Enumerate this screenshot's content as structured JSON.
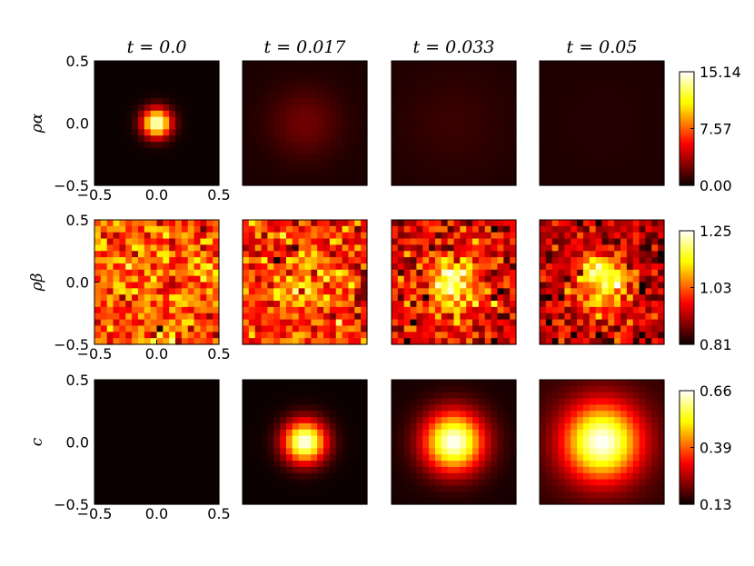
{
  "chart_data": {
    "type": "heatmap",
    "titles": [
      "t = 0.0",
      "t = 0.017",
      "t = 0.033",
      "t = 0.05"
    ],
    "rows": [
      {
        "label": "ρ_α",
        "label_display": "ρα",
        "colorbar": {
          "min": 0.0,
          "max": 15.14,
          "ticks": [
            "15.14",
            "7.57",
            "0.00"
          ]
        },
        "pattern": "concentrated gaussian spreading out over time",
        "peaks": [
          15.14,
          2.3,
          1.05,
          0.6
        ],
        "widths": [
          0.08,
          0.2,
          0.28,
          0.34
        ],
        "background": [
          0.0,
          0.35,
          0.45,
          0.4
        ],
        "noise": 0.0
      },
      {
        "label": "ρ_β",
        "label_display": "ρβ",
        "colorbar": {
          "min": 0.81,
          "max": 1.25,
          "ticks": [
            "1.25",
            "1.03",
            "0.81"
          ]
        },
        "pattern": "random noise with central bump growing over time",
        "peaks": [
          1.03,
          1.08,
          1.19,
          1.2
        ],
        "widths": [
          0.2,
          0.18,
          0.17,
          0.15
        ],
        "background": [
          1.03,
          0.99,
          0.94,
          0.92
        ],
        "noise": 0.06
      },
      {
        "label": "c",
        "label_display": "c",
        "colorbar": {
          "min": 0.13,
          "max": 0.66,
          "ticks": [
            "0.66",
            "0.39",
            "0.13"
          ]
        },
        "pattern": "zero then growing gaussian",
        "peaks": [
          0.13,
          0.66,
          0.66,
          0.66
        ],
        "widths": [
          0.1,
          0.12,
          0.17,
          0.22
        ],
        "background": [
          0.13,
          0.13,
          0.14,
          0.16
        ],
        "noise": 0.0
      }
    ],
    "x_ticks": [
      "−0.5",
      "0.0",
      "0.5"
    ],
    "y_ticks": [
      "0.5",
      "0.0",
      "−0.5"
    ],
    "xlim": [
      -0.5,
      0.5
    ],
    "ylim": [
      -0.5,
      0.5
    ],
    "colormap": "hot",
    "grid": 20
  }
}
